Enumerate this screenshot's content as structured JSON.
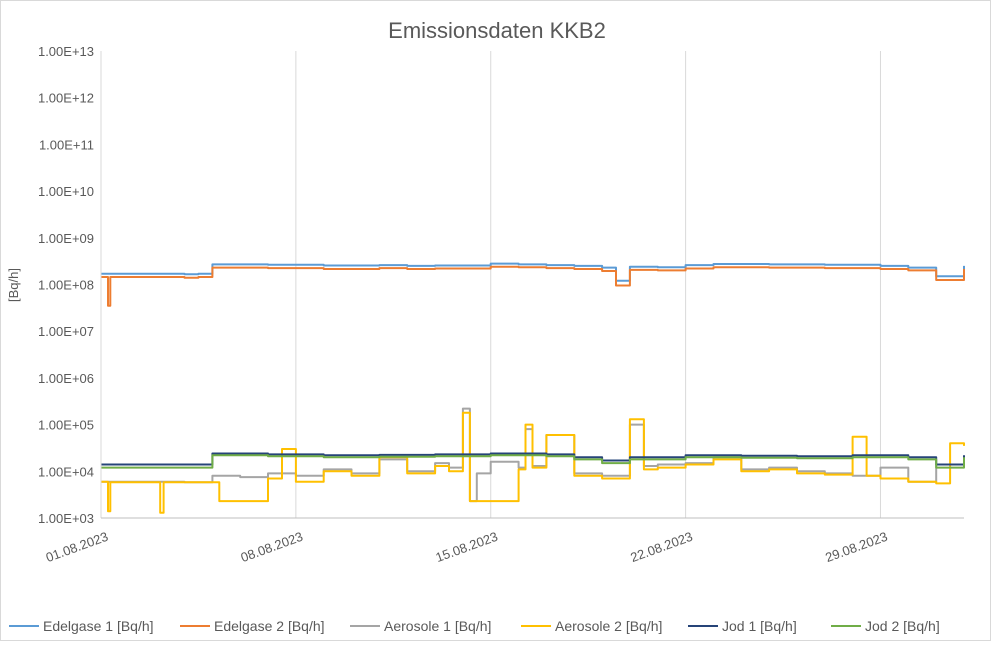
{
  "chart_data": {
    "type": "line",
    "title": "Emissionsdaten KKB2",
    "ylabel": "[Bq/h]",
    "xlabel": "",
    "yscale": "log",
    "ylim": [
      1000,
      10000000000000
    ],
    "y_ticks": [
      "1.00E+03",
      "1.00E+04",
      "1.00E+05",
      "1.00E+06",
      "1.00E+07",
      "1.00E+08",
      "1.00E+09",
      "1.00E+10",
      "1.00E+11",
      "1.00E+12",
      "1.00E+13"
    ],
    "xlim": [
      "2023-08-01",
      "2023-09-01"
    ],
    "x_ticks": [
      "01.08.2023",
      "08.08.2023",
      "15.08.2023",
      "22.08.2023",
      "29.08.2023"
    ],
    "grid": "vertical",
    "legend_position": "bottom",
    "series": [
      {
        "name": "Edelgase 1 [Bq/h]",
        "color": "#5b9bd5",
        "x": [
          "2023-08-01",
          "2023-08-04",
          "2023-08-04 12:00",
          "2023-08-05",
          "2023-08-07",
          "2023-08-09",
          "2023-08-11",
          "2023-08-12",
          "2023-08-13",
          "2023-08-15",
          "2023-08-16",
          "2023-08-17",
          "2023-08-18",
          "2023-08-19",
          "2023-08-19 12:00",
          "2023-08-20",
          "2023-08-21",
          "2023-08-22",
          "2023-08-23",
          "2023-08-25",
          "2023-08-27",
          "2023-08-29",
          "2023-08-30",
          "2023-08-31",
          "2023-09-01"
        ],
        "y": [
          170000000,
          165000000,
          170000000,
          270000000,
          265000000,
          255000000,
          260000000,
          250000000,
          255000000,
          280000000,
          270000000,
          260000000,
          250000000,
          230000000,
          120000000,
          240000000,
          235000000,
          260000000,
          275000000,
          270000000,
          265000000,
          250000000,
          230000000,
          150000000,
          250000000
        ]
      },
      {
        "name": "Edelgase 2 [Bq/h]",
        "color": "#ed7d31",
        "x": [
          "2023-08-01",
          "2023-08-01 06:00",
          "2023-08-01 08:00",
          "2023-08-04",
          "2023-08-04 12:00",
          "2023-08-05",
          "2023-08-07",
          "2023-08-09",
          "2023-08-11",
          "2023-08-12",
          "2023-08-13",
          "2023-08-15",
          "2023-08-16",
          "2023-08-17",
          "2023-08-18",
          "2023-08-19",
          "2023-08-19 12:00",
          "2023-08-20",
          "2023-08-21",
          "2023-08-22",
          "2023-08-23",
          "2023-08-25",
          "2023-08-27",
          "2023-08-29",
          "2023-08-30",
          "2023-08-31",
          "2023-09-01"
        ],
        "y": [
          145000000,
          35000000,
          145000000,
          140000000,
          145000000,
          230000000,
          225000000,
          215000000,
          225000000,
          215000000,
          220000000,
          240000000,
          235000000,
          225000000,
          215000000,
          195000000,
          95000000,
          205000000,
          200000000,
          220000000,
          235000000,
          230000000,
          225000000,
          215000000,
          200000000,
          125000000,
          215000000
        ]
      },
      {
        "name": "Aerosole 1 [Bq/h]",
        "color": "#a5a5a5",
        "x": [
          "2023-08-01",
          "2023-08-04",
          "2023-08-05",
          "2023-08-06",
          "2023-08-07",
          "2023-08-08",
          "2023-08-09",
          "2023-08-10",
          "2023-08-11",
          "2023-08-12",
          "2023-08-13",
          "2023-08-13 12:00",
          "2023-08-14",
          "2023-08-14 06:00",
          "2023-08-14 12:00",
          "2023-08-15",
          "2023-08-16",
          "2023-08-16 06:00",
          "2023-08-16 12:00",
          "2023-08-17",
          "2023-08-18",
          "2023-08-19",
          "2023-08-20",
          "2023-08-20 12:00",
          "2023-08-21",
          "2023-08-22",
          "2023-08-23",
          "2023-08-24",
          "2023-08-25",
          "2023-08-26",
          "2023-08-27",
          "2023-08-28",
          "2023-08-29",
          "2023-08-30",
          "2023-08-31",
          "2023-09-01"
        ],
        "y": [
          6000,
          5800,
          8000,
          7500,
          9000,
          8000,
          11000,
          9000,
          18000,
          10000,
          15000,
          12000,
          220000,
          2300,
          9000,
          16000,
          12000,
          80000,
          13000,
          60000,
          9000,
          8000,
          100000,
          13000,
          14000,
          15000,
          20000,
          11000,
          12000,
          10000,
          9000,
          8000,
          12000,
          6000,
          14000,
          15000
        ]
      },
      {
        "name": "Aerosole 2 [Bq/h]",
        "color": "#ffc000",
        "x": [
          "2023-08-01",
          "2023-08-01 06:00",
          "2023-08-01 08:00",
          "2023-08-03",
          "2023-08-03 03:00",
          "2023-08-03 06:00",
          "2023-08-04",
          "2023-08-05",
          "2023-08-05 06:00",
          "2023-08-06",
          "2023-08-07",
          "2023-08-07 12:00",
          "2023-08-08",
          "2023-08-09",
          "2023-08-10",
          "2023-08-11",
          "2023-08-12",
          "2023-08-13",
          "2023-08-13 12:00",
          "2023-08-14",
          "2023-08-14 06:00",
          "2023-08-14 12:00",
          "2023-08-15",
          "2023-08-16",
          "2023-08-16 06:00",
          "2023-08-16 12:00",
          "2023-08-17",
          "2023-08-18",
          "2023-08-19",
          "2023-08-20",
          "2023-08-20 12:00",
          "2023-08-21",
          "2023-08-22",
          "2023-08-23",
          "2023-08-24",
          "2023-08-25",
          "2023-08-26",
          "2023-08-27",
          "2023-08-28",
          "2023-08-28 12:00",
          "2023-08-29",
          "2023-08-30",
          "2023-08-31",
          "2023-08-31 12:00",
          "2023-09-01"
        ],
        "y": [
          6000,
          1400,
          5800,
          5800,
          1300,
          5800,
          5800,
          5800,
          2300,
          2300,
          7000,
          30000,
          6000,
          10000,
          8000,
          20000,
          9000,
          13000,
          10000,
          180000,
          2300,
          2300,
          2300,
          11000,
          100000,
          12000,
          60000,
          8000,
          7000,
          130000,
          11000,
          12000,
          14000,
          18000,
          10000,
          11000,
          9000,
          8500,
          55000,
          8000,
          7000,
          6000,
          5500,
          40000,
          35000
        ]
      },
      {
        "name": "Jod 1 [Bq/h]",
        "color": "#264478",
        "x": [
          "2023-08-01",
          "2023-08-04",
          "2023-08-05",
          "2023-08-07",
          "2023-08-09",
          "2023-08-11",
          "2023-08-13",
          "2023-08-15",
          "2023-08-17",
          "2023-08-18",
          "2023-08-19",
          "2023-08-20",
          "2023-08-22",
          "2023-08-24",
          "2023-08-26",
          "2023-08-28",
          "2023-08-30",
          "2023-08-31",
          "2023-09-01"
        ],
        "y": [
          14000,
          14000,
          24000,
          23000,
          22000,
          22500,
          23000,
          24000,
          23000,
          20000,
          17000,
          20000,
          22000,
          21500,
          21000,
          22000,
          20000,
          14000,
          22000
        ]
      },
      {
        "name": "Jod 2 [Bq/h]",
        "color": "#70ad47",
        "x": [
          "2023-08-01",
          "2023-08-04",
          "2023-08-05",
          "2023-08-07",
          "2023-08-09",
          "2023-08-11",
          "2023-08-13",
          "2023-08-15",
          "2023-08-17",
          "2023-08-18",
          "2023-08-19",
          "2023-08-20",
          "2023-08-22",
          "2023-08-24",
          "2023-08-26",
          "2023-08-28",
          "2023-08-30",
          "2023-08-31",
          "2023-09-01"
        ],
        "y": [
          12000,
          12000,
          22000,
          21000,
          20000,
          20500,
          21000,
          22000,
          21000,
          18000,
          15000,
          18000,
          20000,
          19500,
          19000,
          20000,
          18000,
          12000,
          20000
        ]
      }
    ]
  }
}
